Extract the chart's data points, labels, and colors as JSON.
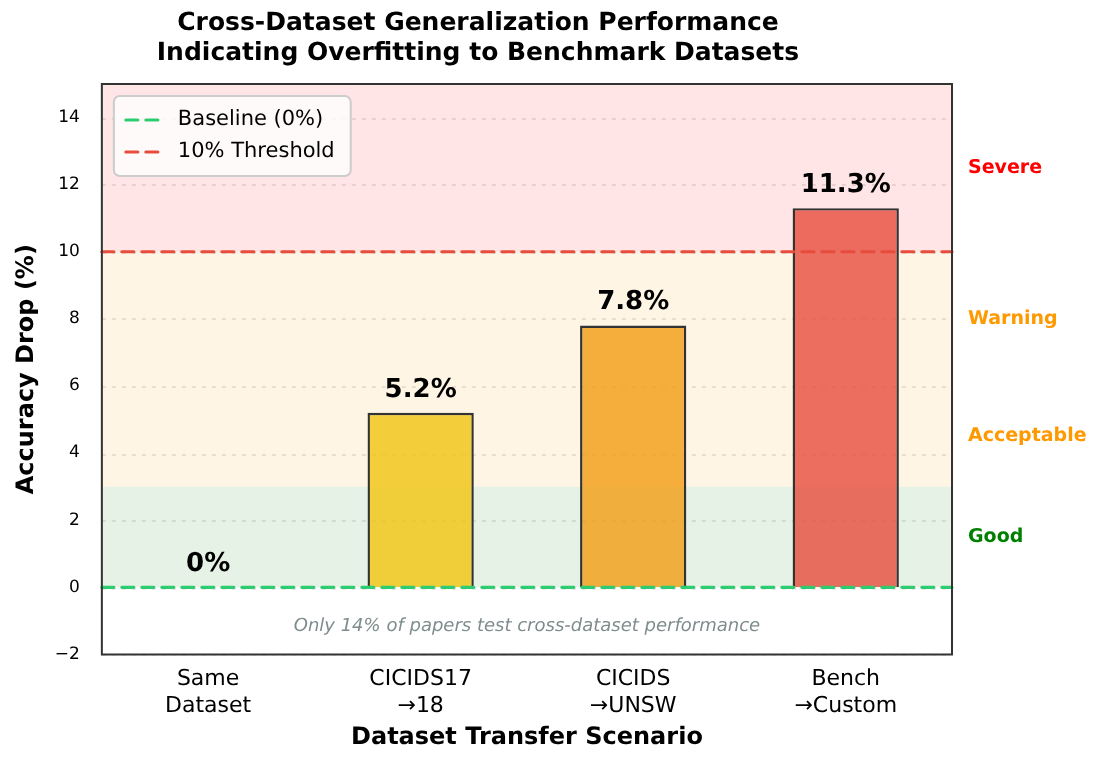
{
  "chart_data": {
    "type": "bar",
    "title": "Cross-Dataset Generalization Performance\nIndicating Overfitting to Benchmark Datasets",
    "xlabel": "Dataset Transfer Scenario",
    "ylabel": "Accuracy Drop (%)",
    "categories": [
      "Same\nDataset",
      "CICIDS17\n→18",
      "CICIDS\n→UNSW",
      "Bench\n→Custom"
    ],
    "values": [
      0,
      5.2,
      7.8,
      11.3
    ],
    "colors": [
      "#2ca02c",
      "#f1c40f",
      "#f39c12",
      "#e74c3c"
    ],
    "value_labels": [
      "0%",
      "5.2%",
      "7.8%",
      "11.3%"
    ],
    "ylim": [
      -2,
      15
    ],
    "yticks": [
      -2,
      0,
      2,
      4,
      6,
      8,
      10,
      12,
      14
    ],
    "grid": "y",
    "legend": "top left",
    "ref_lines": [
      {
        "axis": "y",
        "value": 0,
        "label": "Baseline (0%)",
        "color": "#2ecc71",
        "line_style": "dashed"
      },
      {
        "axis": "y",
        "value": 10,
        "label": "10% Threshold",
        "color": "#e74c3c",
        "line_style": "dashed"
      }
    ],
    "bands": [
      {
        "axis": "y",
        "from": 0,
        "to": 3,
        "label": "Good",
        "color": "#008000"
      },
      {
        "axis": "y",
        "from": 3,
        "to": 6,
        "label": "Acceptable",
        "color": "#ff9900"
      },
      {
        "axis": "y",
        "from": 6,
        "to": 10,
        "label": "Warning",
        "color": "#ff9900"
      },
      {
        "axis": "y",
        "from": 10,
        "to": 15,
        "label": "Severe",
        "color": "#ff0000"
      }
    ],
    "annotations": [
      "Only 14% of papers test cross-dataset performance"
    ]
  }
}
